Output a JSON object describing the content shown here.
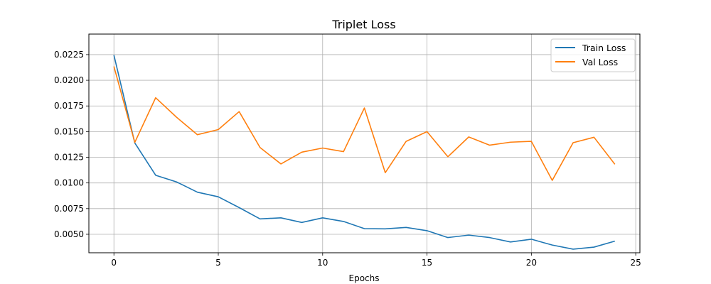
{
  "chart_data": {
    "type": "line",
    "title": "Triplet Loss",
    "xlabel": "Epochs",
    "ylabel": "",
    "xlim": [
      -1.2,
      25.2
    ],
    "ylim": [
      0.0032,
      0.0245
    ],
    "xticks": [
      0,
      5,
      10,
      15,
      20,
      25
    ],
    "yticks": [
      0.005,
      0.0075,
      0.01,
      0.0125,
      0.015,
      0.0175,
      0.02,
      0.0225
    ],
    "xtick_labels": [
      "0",
      "5",
      "10",
      "15",
      "20",
      "25"
    ],
    "ytick_labels": [
      "0.0050",
      "0.0075",
      "0.0100",
      "0.0125",
      "0.0150",
      "0.0175",
      "0.0200",
      "0.0225"
    ],
    "grid": true,
    "legend_position": "top-right",
    "x": [
      0,
      1,
      2,
      3,
      4,
      5,
      6,
      7,
      8,
      9,
      10,
      11,
      12,
      13,
      14,
      15,
      16,
      17,
      18,
      19,
      20,
      21,
      22,
      23,
      24
    ],
    "series": [
      {
        "name": "Train Loss",
        "color": "#1f77b4",
        "values": [
          0.02245,
          0.0139,
          0.01075,
          0.0101,
          0.0091,
          0.00865,
          0.0076,
          0.0065,
          0.0066,
          0.00615,
          0.0066,
          0.00625,
          0.00555,
          0.00553,
          0.00567,
          0.00535,
          0.00468,
          0.00492,
          0.00468,
          0.00425,
          0.00452,
          0.00395,
          0.00355,
          0.00375,
          0.00433
        ]
      },
      {
        "name": "Val Loss",
        "color": "#ff7f0e",
        "values": [
          0.02135,
          0.01395,
          0.0183,
          0.0164,
          0.0147,
          0.0152,
          0.01695,
          0.01345,
          0.01185,
          0.013,
          0.0134,
          0.01305,
          0.0173,
          0.011,
          0.01405,
          0.015,
          0.01255,
          0.01448,
          0.01368,
          0.01397,
          0.01405,
          0.01025,
          0.01392,
          0.01445,
          0.01182
        ]
      }
    ]
  }
}
